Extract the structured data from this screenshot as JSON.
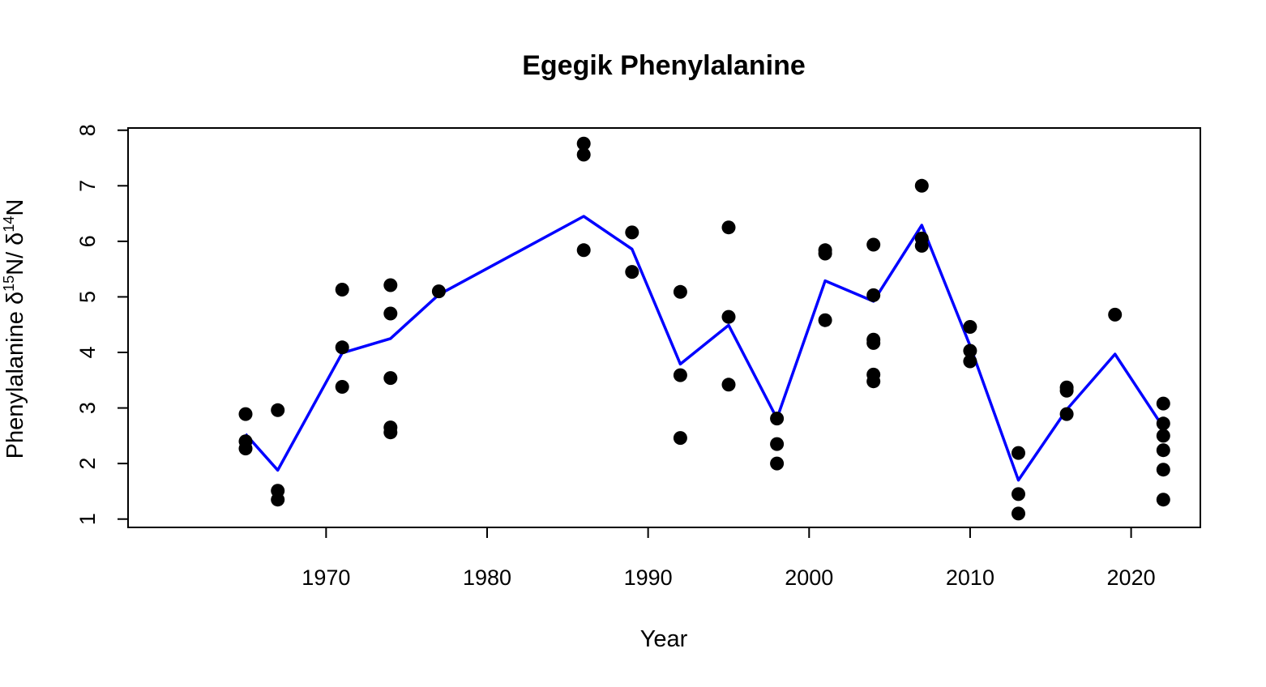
{
  "chart_data": {
    "type": "scatter",
    "title": "Egegik Phenylalanine",
    "xlabel": "Year",
    "ylabel": {
      "prefix": "Phenylalanine δ",
      "sup1": "15",
      "mid": "N/ δ",
      "sup2": "14",
      "suffix": "N"
    },
    "xlim": [
      1957.7,
      2024.3
    ],
    "ylim": [
      0.85,
      8.04
    ],
    "x_ticks": [
      1970,
      1980,
      1990,
      2000,
      2010,
      2020
    ],
    "y_ticks": [
      1,
      2,
      3,
      4,
      5,
      6,
      7,
      8
    ],
    "grid": false,
    "legend": "none",
    "colors": {
      "points": "#000000",
      "mean_line": "#0000ff"
    },
    "series": [
      {
        "type": "scatter",
        "points": [
          [
            1965,
            2.89
          ],
          [
            1965,
            2.4
          ],
          [
            1965,
            2.27
          ],
          [
            1967,
            2.96
          ],
          [
            1967,
            1.51
          ],
          [
            1967,
            1.35
          ],
          [
            1971,
            5.13
          ],
          [
            1971,
            4.09
          ],
          [
            1971,
            3.38
          ],
          [
            1974,
            5.21
          ],
          [
            1974,
            4.7
          ],
          [
            1974,
            3.54
          ],
          [
            1974,
            2.65
          ],
          [
            1974,
            2.56
          ],
          [
            1977,
            5.1
          ],
          [
            1986,
            7.76
          ],
          [
            1986,
            7.56
          ],
          [
            1986,
            5.84
          ],
          [
            1989,
            6.16
          ],
          [
            1989,
            5.45
          ],
          [
            1992,
            5.09
          ],
          [
            1992,
            3.59
          ],
          [
            1992,
            2.46
          ],
          [
            1995,
            6.25
          ],
          [
            1995,
            4.64
          ],
          [
            1995,
            3.42
          ],
          [
            1998,
            2.81
          ],
          [
            1998,
            2.35
          ],
          [
            1998,
            2.0
          ],
          [
            2001,
            5.84
          ],
          [
            2001,
            5.78
          ],
          [
            2001,
            4.58
          ],
          [
            2004,
            5.94
          ],
          [
            2004,
            5.03
          ],
          [
            2004,
            4.23
          ],
          [
            2004,
            4.17
          ],
          [
            2004,
            3.6
          ],
          [
            2004,
            3.48
          ],
          [
            2007,
            7.0
          ],
          [
            2007,
            6.05
          ],
          [
            2007,
            5.92
          ],
          [
            2010,
            4.46
          ],
          [
            2010,
            4.03
          ],
          [
            2010,
            3.84
          ],
          [
            2013,
            2.19
          ],
          [
            2013,
            1.45
          ],
          [
            2013,
            1.1
          ],
          [
            2016,
            3.37
          ],
          [
            2016,
            3.31
          ],
          [
            2016,
            2.89
          ],
          [
            2019,
            4.68
          ],
          [
            2022,
            3.08
          ],
          [
            2022,
            2.72
          ],
          [
            2022,
            2.5
          ],
          [
            2022,
            2.24
          ],
          [
            2022,
            1.89
          ],
          [
            2022,
            1.35
          ]
        ]
      },
      {
        "type": "line",
        "x": [
          1965,
          1967,
          1971,
          1974,
          1977,
          1986,
          1989,
          1992,
          1995,
          1998,
          2001,
          2004,
          2007,
          2010,
          2013,
          2016,
          2019,
          2022
        ],
        "y": [
          2.53,
          1.88,
          3.99,
          4.25,
          5.04,
          6.45,
          5.86,
          3.79,
          4.49,
          2.81,
          5.29,
          4.92,
          6.29,
          4.12,
          1.7,
          2.97,
          3.97,
          2.65
        ]
      }
    ]
  }
}
